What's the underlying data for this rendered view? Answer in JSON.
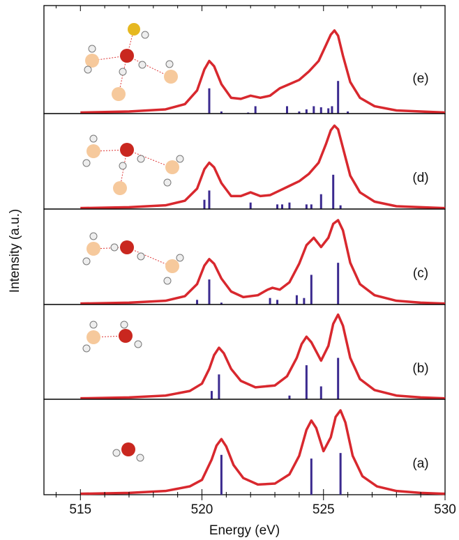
{
  "ylabel": "Intensity (a.u.)",
  "chart_data": [
    {
      "type": "line",
      "label": "(e)",
      "xlim": [
        513.5,
        530
      ],
      "ylim": [
        0,
        1
      ],
      "x": [
        515,
        517,
        518.5,
        519.3,
        519.8,
        520.1,
        520.3,
        520.5,
        520.8,
        521.2,
        521.6,
        522,
        522.4,
        522.8,
        523.2,
        523.6,
        524,
        524.4,
        524.8,
        525.1,
        525.3,
        525.45,
        525.6,
        525.8,
        526.1,
        526.5,
        527.1,
        528,
        529,
        530
      ],
      "series": [
        {
          "color": "#d8282e",
          "values": [
            0.01,
            0.02,
            0.04,
            0.09,
            0.22,
            0.42,
            0.5,
            0.45,
            0.28,
            0.15,
            0.14,
            0.17,
            0.15,
            0.17,
            0.24,
            0.28,
            0.32,
            0.4,
            0.5,
            0.65,
            0.75,
            0.79,
            0.74,
            0.55,
            0.3,
            0.15,
            0.07,
            0.03,
            0.02,
            0.01
          ]
        }
      ],
      "sticks": {
        "color": "#3b2a8f",
        "x": [
          520.3,
          520.8,
          521.9,
          522.2,
          523.5,
          524,
          524.3,
          524.6,
          524.9,
          525.2,
          525.35,
          525.6,
          526
        ],
        "values": [
          0.24,
          0.02,
          0.01,
          0.07,
          0.07,
          0.02,
          0.04,
          0.07,
          0.06,
          0.05,
          0.07,
          0.31,
          0.02
        ]
      }
    },
    {
      "type": "line",
      "label": "(d)",
      "xlim": [
        513.5,
        530
      ],
      "ylim": [
        0,
        1
      ],
      "x": [
        515,
        517,
        518.5,
        519.3,
        519.8,
        520.1,
        520.3,
        520.5,
        520.8,
        521.2,
        521.6,
        522,
        522.4,
        522.8,
        523.2,
        523.6,
        524,
        524.4,
        524.8,
        525.1,
        525.3,
        525.45,
        525.6,
        525.8,
        526.1,
        526.5,
        527.1,
        528,
        529,
        530
      ],
      "series": [
        {
          "color": "#d8282e",
          "values": [
            0.01,
            0.02,
            0.04,
            0.09,
            0.22,
            0.43,
            0.5,
            0.45,
            0.28,
            0.14,
            0.14,
            0.18,
            0.14,
            0.15,
            0.2,
            0.25,
            0.3,
            0.38,
            0.5,
            0.7,
            0.85,
            0.9,
            0.86,
            0.66,
            0.36,
            0.18,
            0.08,
            0.03,
            0.02,
            0.01
          ]
        }
      ],
      "sticks": {
        "color": "#3b2a8f",
        "x": [
          520.1,
          520.3,
          522,
          523.1,
          523.3,
          523.6,
          524.3,
          524.5,
          524.9,
          525.4,
          525.7
        ],
        "values": [
          0.1,
          0.2,
          0.07,
          0.05,
          0.05,
          0.07,
          0.05,
          0.05,
          0.16,
          0.37,
          0.04
        ]
      }
    },
    {
      "type": "line",
      "label": "(c)",
      "xlim": [
        513.5,
        530
      ],
      "ylim": [
        0,
        1
      ],
      "x": [
        515,
        517,
        518.5,
        519.3,
        519.8,
        520.1,
        520.3,
        520.5,
        520.8,
        521.2,
        521.7,
        522.3,
        522.7,
        522.9,
        523.2,
        523.6,
        524,
        524.3,
        524.6,
        524.9,
        525.2,
        525.4,
        525.6,
        525.8,
        526.1,
        526.5,
        527.1,
        528,
        529,
        530
      ],
      "series": [
        {
          "color": "#d8282e",
          "values": [
            0.01,
            0.02,
            0.04,
            0.09,
            0.22,
            0.42,
            0.49,
            0.44,
            0.28,
            0.14,
            0.08,
            0.1,
            0.16,
            0.18,
            0.16,
            0.24,
            0.44,
            0.64,
            0.72,
            0.62,
            0.72,
            0.87,
            0.91,
            0.8,
            0.45,
            0.22,
            0.1,
            0.04,
            0.02,
            0.01
          ]
        }
      ],
      "sticks": {
        "color": "#3b2a8f",
        "x": [
          519.8,
          520.3,
          520.8,
          522.8,
          523.1,
          523.9,
          524.2,
          524.5,
          525.6
        ],
        "values": [
          0.05,
          0.27,
          0.02,
          0.07,
          0.05,
          0.1,
          0.07,
          0.32,
          0.45
        ]
      }
    },
    {
      "type": "line",
      "label": "(b)",
      "xlim": [
        513.5,
        530
      ],
      "ylim": [
        0,
        1
      ],
      "x": [
        515,
        517,
        518.5,
        519.5,
        520,
        520.3,
        520.5,
        520.7,
        520.9,
        521.2,
        521.6,
        522.2,
        523,
        523.5,
        523.9,
        524.1,
        524.3,
        524.5,
        524.9,
        525.2,
        525.4,
        525.6,
        525.8,
        526.1,
        526.5,
        527.1,
        528,
        529,
        530
      ],
      "series": [
        {
          "color": "#d8282e",
          "values": [
            0.01,
            0.02,
            0.04,
            0.09,
            0.17,
            0.33,
            0.48,
            0.56,
            0.5,
            0.33,
            0.2,
            0.13,
            0.15,
            0.25,
            0.45,
            0.6,
            0.68,
            0.62,
            0.42,
            0.58,
            0.82,
            0.92,
            0.8,
            0.45,
            0.22,
            0.1,
            0.04,
            0.02,
            0.01
          ]
        }
      ],
      "sticks": {
        "color": "#3b2a8f",
        "x": [
          520.4,
          520.7,
          523.6,
          524.3,
          524.9,
          525.6
        ],
        "values": [
          0.09,
          0.27,
          0.04,
          0.37,
          0.14,
          0.45
        ]
      }
    },
    {
      "type": "line",
      "label": "(a)",
      "xlim": [
        513.5,
        530
      ],
      "ylim": [
        0,
        1
      ],
      "xlabel": "Energy (eV)",
      "xticks": [
        515,
        520,
        525,
        530
      ],
      "xminorticks": [
        514,
        516,
        517,
        518,
        519,
        521,
        522,
        523,
        524,
        526,
        527,
        528,
        529
      ],
      "x": [
        515,
        517,
        518.5,
        519.5,
        520,
        520.4,
        520.6,
        520.8,
        521,
        521.3,
        521.7,
        522.3,
        523,
        523.6,
        524,
        524.3,
        524.5,
        524.7,
        525,
        525.3,
        525.5,
        525.7,
        525.9,
        526.2,
        526.6,
        527.2,
        528,
        529,
        530
      ],
      "series": [
        {
          "color": "#d8282e",
          "values": [
            0.01,
            0.02,
            0.04,
            0.09,
            0.16,
            0.38,
            0.53,
            0.6,
            0.52,
            0.32,
            0.18,
            0.11,
            0.12,
            0.22,
            0.42,
            0.7,
            0.8,
            0.72,
            0.47,
            0.62,
            0.84,
            0.91,
            0.78,
            0.42,
            0.2,
            0.09,
            0.04,
            0.02,
            0.01
          ]
        }
      ],
      "sticks": {
        "color": "#3b2a8f",
        "x": [
          520.8,
          524.5,
          525.7
        ],
        "values": [
          0.43,
          0.39,
          0.45
        ]
      }
    }
  ]
}
